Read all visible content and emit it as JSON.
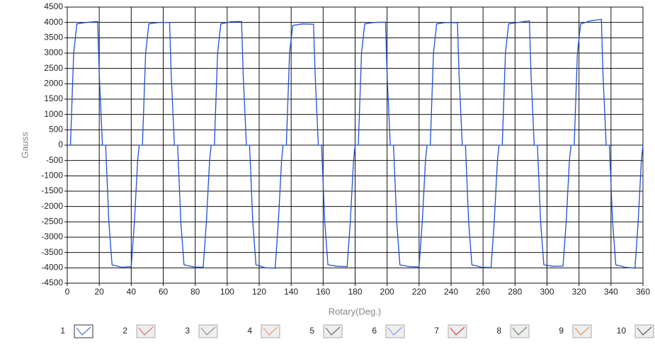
{
  "chart_data": {
    "type": "line",
    "x_label": "Rotary(Deg.)",
    "y_label": "Gauss",
    "x": [
      0,
      2,
      4,
      6,
      12,
      19,
      20,
      22,
      24,
      26,
      28,
      34,
      40,
      42,
      44,
      45,
      47,
      49,
      51,
      57,
      64,
      65,
      67,
      69,
      71,
      73,
      79,
      85,
      87,
      89,
      90,
      92,
      94,
      96,
      102,
      109,
      110,
      112,
      114,
      116,
      118,
      124,
      130,
      132,
      134,
      135,
      137,
      139,
      141,
      147,
      154,
      155,
      157,
      159,
      161,
      163,
      169,
      175,
      177,
      179,
      180,
      182,
      184,
      186,
      192,
      199,
      200,
      202,
      204,
      206,
      208,
      214,
      220,
      222,
      224,
      225,
      227,
      229,
      231,
      237,
      244,
      245,
      247,
      249,
      251,
      253,
      259,
      265,
      267,
      269,
      270,
      272,
      274,
      276,
      282,
      289,
      290,
      292,
      294,
      296,
      298,
      304,
      310,
      312,
      314,
      315,
      317,
      319,
      321,
      327,
      334,
      335,
      337,
      339,
      341,
      343,
      349,
      355,
      357,
      359,
      360
    ],
    "series": [
      {
        "name": "1",
        "color": "#1f4fd6",
        "values": [
          0,
          0,
          3000,
          3950,
          4000,
          4030,
          2300,
          0,
          0,
          -2500,
          -3900,
          -3980,
          -3960,
          -2500,
          -500,
          0,
          0,
          3000,
          3950,
          4000,
          4000,
          2300,
          0,
          0,
          -2500,
          -3900,
          -3970,
          -3980,
          -2500,
          -500,
          0,
          0,
          3000,
          3950,
          4020,
          4030,
          2300,
          0,
          0,
          -2500,
          -3900,
          -4000,
          -4010,
          -2500,
          -500,
          0,
          0,
          3000,
          3900,
          3950,
          3940,
          2300,
          0,
          0,
          -2500,
          -3900,
          -3950,
          -3960,
          -2500,
          -500,
          0,
          0,
          3000,
          3950,
          4000,
          4010,
          2300,
          0,
          0,
          -2500,
          -3900,
          -3960,
          -3970,
          -2500,
          -500,
          0,
          0,
          3000,
          3950,
          4000,
          3990,
          2300,
          0,
          0,
          -2500,
          -3900,
          -3980,
          -3990,
          -2500,
          -500,
          0,
          0,
          3000,
          3950,
          4000,
          4050,
          2300,
          0,
          0,
          -2500,
          -3900,
          -3950,
          -3940,
          -2500,
          -500,
          0,
          0,
          3000,
          3950,
          4050,
          4100,
          2300,
          0,
          0,
          -2500,
          -3900,
          -3980,
          -4010,
          -2500,
          -500,
          0
        ]
      }
    ],
    "legend": [
      {
        "name": "1",
        "color": "#1f4fd6"
      },
      {
        "name": "2",
        "color": "#e05050"
      },
      {
        "name": "3",
        "color": "#6a8a6a"
      },
      {
        "name": "4",
        "color": "#e89060"
      },
      {
        "name": "5",
        "color": "#505050"
      },
      {
        "name": "6",
        "color": "#6a8ee8"
      },
      {
        "name": "7",
        "color": "#d02020"
      },
      {
        "name": "8",
        "color": "#507050"
      },
      {
        "name": "9",
        "color": "#e08040"
      },
      {
        "name": "10",
        "color": "#404040"
      }
    ],
    "xlim": [
      0,
      360
    ],
    "xticks": [
      0,
      20,
      40,
      60,
      80,
      100,
      120,
      140,
      160,
      180,
      200,
      220,
      240,
      260,
      280,
      300,
      320,
      340,
      360
    ],
    "ylim": [
      -4500,
      4500
    ],
    "yticks": [
      -4500,
      -4000,
      -3500,
      -3000,
      -2500,
      -2000,
      -1500,
      -1000,
      -500,
      0,
      500,
      1000,
      1500,
      2000,
      2500,
      3000,
      3500,
      4000,
      4500
    ],
    "grid": true
  }
}
